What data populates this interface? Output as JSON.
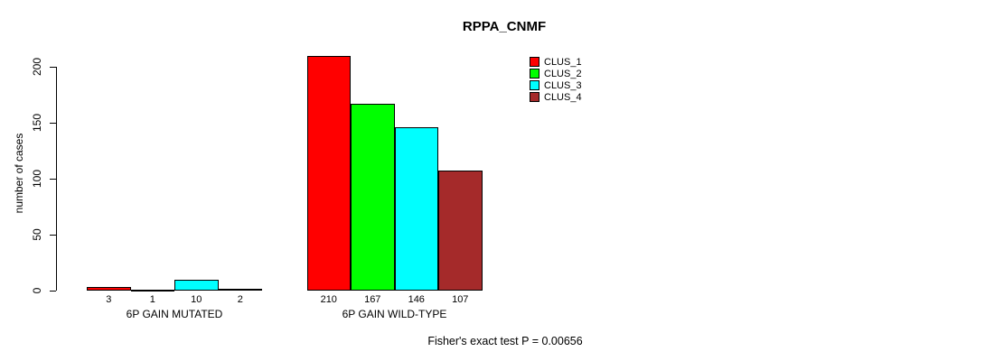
{
  "title": "RPPA_CNMF",
  "chart_data": {
    "type": "bar",
    "title": "RPPA_CNMF",
    "xlabel": "",
    "ylabel": "number of cases",
    "ylim": [
      0,
      210
    ],
    "yticks": [
      0,
      50,
      100,
      150,
      200
    ],
    "grid": false,
    "legend_position": "top-right",
    "categories": [
      "6P GAIN MUTATED",
      "6P GAIN WILD-TYPE"
    ],
    "series": [
      {
        "name": "CLUS_1",
        "color": "#FF0000",
        "values": [
          3,
          210
        ]
      },
      {
        "name": "CLUS_2",
        "color": "#00FF00",
        "values": [
          1,
          167
        ]
      },
      {
        "name": "CLUS_3",
        "color": "#00FFFF",
        "values": [
          10,
          146
        ]
      },
      {
        "name": "CLUS_4",
        "color": "#A52A2A",
        "values": [
          2,
          107
        ]
      }
    ],
    "bar_value_labels": [
      [
        "3",
        "1",
        "10",
        "2"
      ],
      [
        "210",
        "167",
        "146",
        "107"
      ]
    ],
    "annotation": "Fisher's exact test P = 0.00656"
  },
  "legend": {
    "items": [
      {
        "label": "CLUS_1",
        "color": "#FF0000"
      },
      {
        "label": "CLUS_2",
        "color": "#00FF00"
      },
      {
        "label": "CLUS_3",
        "color": "#00FFFF"
      },
      {
        "label": "CLUS_4",
        "color": "#A52A2A"
      }
    ]
  },
  "footer": "Fisher's exact test P = 0.00656"
}
